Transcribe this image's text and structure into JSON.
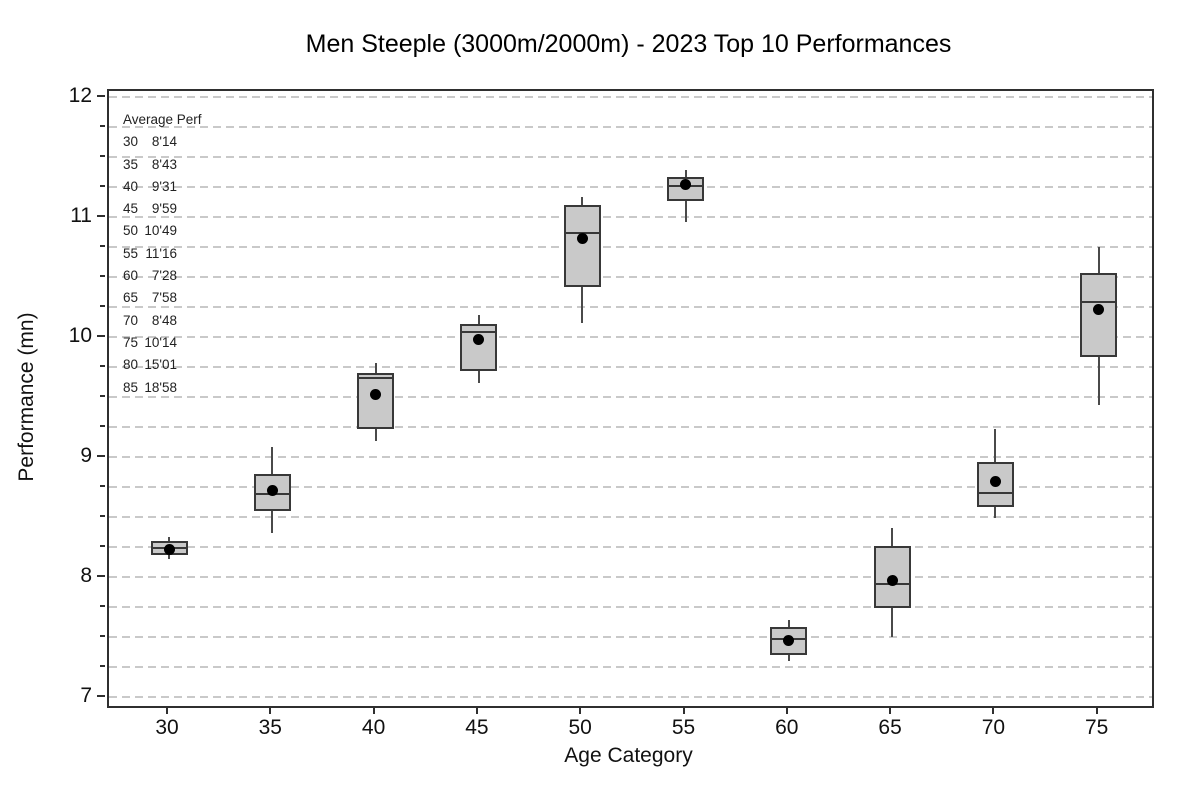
{
  "chart_data": {
    "type": "boxplot",
    "title": "Men Steeple (3000m/2000m) - 2023 Top 10 Performances",
    "xlabel": "Age Category",
    "ylabel": "Performance (mn)",
    "ylim": [
      6.925,
      12.05
    ],
    "y_major_ticks": [
      7,
      8,
      9,
      10,
      11,
      12
    ],
    "y_minor_step": 0.25,
    "grid": "horizontal dashed lines every 0.25",
    "legend_position": "none",
    "categories": [
      "30",
      "35",
      "40",
      "45",
      "50",
      "55",
      "60",
      "65",
      "70",
      "75"
    ],
    "series": [
      {
        "category": "30",
        "min": 8.15,
        "q1": 8.18,
        "median": 8.24,
        "q3": 8.3,
        "max": 8.33,
        "mean": 8.233
      },
      {
        "category": "35",
        "min": 8.37,
        "q1": 8.55,
        "median": 8.69,
        "q3": 8.86,
        "max": 9.08,
        "mean": 8.717
      },
      {
        "category": "40",
        "min": 9.13,
        "q1": 9.23,
        "median": 9.66,
        "q3": 9.7,
        "max": 9.78,
        "mean": 9.517
      },
      {
        "category": "45",
        "min": 9.62,
        "q1": 9.72,
        "median": 10.04,
        "q3": 10.11,
        "max": 10.18,
        "mean": 9.983
      },
      {
        "category": "50",
        "min": 10.12,
        "q1": 10.42,
        "median": 10.87,
        "q3": 11.1,
        "max": 11.17,
        "mean": 10.817
      },
      {
        "category": "55",
        "min": 10.96,
        "q1": 11.13,
        "median": 11.26,
        "q3": 11.33,
        "max": 11.39,
        "mean": 11.267
      },
      {
        "category": "60",
        "min": 7.3,
        "q1": 7.35,
        "median": 7.48,
        "q3": 7.58,
        "max": 7.64,
        "mean": 7.467
      },
      {
        "category": "65",
        "min": 7.5,
        "q1": 7.74,
        "median": 7.94,
        "q3": 8.26,
        "max": 8.41,
        "mean": 7.967
      },
      {
        "category": "70",
        "min": 8.49,
        "q1": 8.58,
        "median": 8.7,
        "q3": 8.96,
        "max": 9.23,
        "mean": 8.8
      },
      {
        "category": "75",
        "min": 9.43,
        "q1": 9.83,
        "median": 10.29,
        "q3": 10.53,
        "max": 10.75,
        "mean": 10.233
      }
    ],
    "annotation": {
      "header": "Average Perf",
      "rows": [
        {
          "age": "30",
          "time": "8'14"
        },
        {
          "age": "35",
          "time": "8'43"
        },
        {
          "age": "40",
          "time": "9'31"
        },
        {
          "age": "45",
          "time": "9'59"
        },
        {
          "age": "50",
          "time": "10'49"
        },
        {
          "age": "55",
          "time": "11'16"
        },
        {
          "age": "60",
          "time": "7'28"
        },
        {
          "age": "65",
          "time": "7'58"
        },
        {
          "age": "70",
          "time": "8'48"
        },
        {
          "age": "75",
          "time": "10'14"
        },
        {
          "age": "80",
          "time": "15'01"
        },
        {
          "age": "85",
          "time": "18'58"
        }
      ]
    },
    "colors": {
      "box_fill": "#c9c9c9",
      "box_border": "#383838",
      "median_line": "#383838",
      "whisker": "#4a4a4a",
      "mean_dot": "#000000",
      "gridline": "#c9c9c9",
      "axis": "#2f2f2f",
      "text": "#111111",
      "background": "#ffffff"
    }
  }
}
